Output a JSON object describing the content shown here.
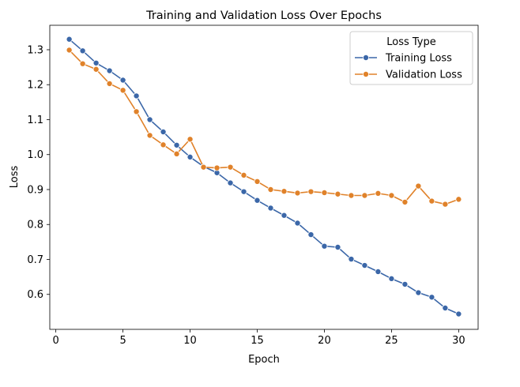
{
  "chart_data": {
    "type": "line",
    "title": "Training and Validation Loss Over Epochs",
    "xlabel": "Epoch",
    "ylabel": "Loss",
    "xlim": [
      -0.45,
      31.45
    ],
    "ylim": [
      0.5,
      1.37
    ],
    "xticks": [
      0,
      5,
      10,
      15,
      20,
      25,
      30
    ],
    "yticks": [
      0.6,
      0.7,
      0.8,
      0.9,
      1.0,
      1.1,
      1.2,
      1.3
    ],
    "grid": false,
    "legend": {
      "title": "Loss Type",
      "placement": "top-right"
    },
    "x": [
      1,
      2,
      3,
      4,
      5,
      6,
      7,
      8,
      9,
      10,
      11,
      12,
      13,
      14,
      15,
      16,
      17,
      18,
      19,
      20,
      21,
      22,
      23,
      24,
      25,
      26,
      27,
      28,
      29,
      30
    ],
    "series": [
      {
        "name": "Training Loss",
        "color": "#3b67a8",
        "values": [
          1.33,
          1.297,
          1.262,
          1.24,
          1.213,
          1.168,
          1.1,
          1.065,
          1.027,
          0.993,
          0.966,
          0.948,
          0.919,
          0.894,
          0.869,
          0.847,
          0.826,
          0.804,
          0.771,
          0.738,
          0.735,
          0.701,
          0.683,
          0.665,
          0.645,
          0.629,
          0.605,
          0.592,
          0.561,
          0.544
        ]
      },
      {
        "name": "Validation Loss",
        "color": "#e0822a",
        "values": [
          1.299,
          1.26,
          1.244,
          1.203,
          1.184,
          1.123,
          1.055,
          1.028,
          1.002,
          1.044,
          0.964,
          0.962,
          0.964,
          0.941,
          0.923,
          0.9,
          0.895,
          0.89,
          0.894,
          0.891,
          0.887,
          0.883,
          0.883,
          0.889,
          0.883,
          0.864,
          0.91,
          0.867,
          0.858,
          0.872
        ]
      }
    ]
  }
}
